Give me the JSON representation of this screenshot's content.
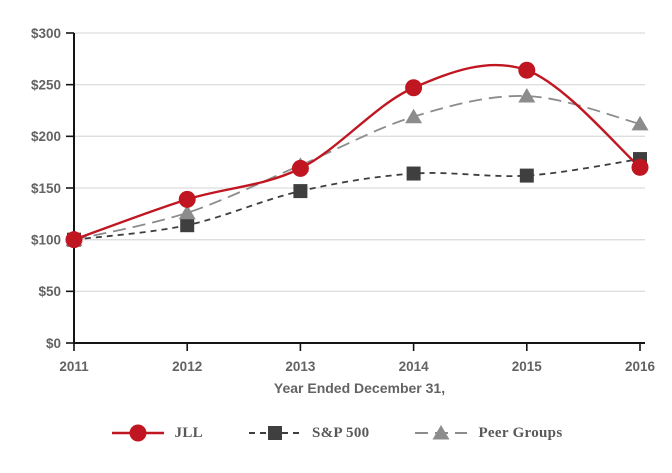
{
  "chart_data": {
    "type": "line",
    "title": "",
    "xlabel": "Year Ended December 31,",
    "ylabel": "",
    "x_labels": [
      "2011",
      "2012",
      "2013",
      "2014",
      "2015",
      "2016"
    ],
    "ylim": [
      0,
      300
    ],
    "ytick_values": [
      0,
      50,
      100,
      150,
      200,
      250,
      300
    ],
    "ytick_labels": [
      "$0",
      "$50",
      "$100",
      "$150",
      "$200",
      "$250",
      "$300"
    ],
    "grid": true,
    "legend_position": "bottom",
    "series": [
      {
        "name": "JLL",
        "marker": "circle",
        "line_style": "solid",
        "color": "#c01622",
        "values": [
          100,
          139,
          169,
          247,
          264,
          170
        ]
      },
      {
        "name": "S&P 500",
        "marker": "square",
        "line_style": "dashed-short",
        "color": "#3f3f3f",
        "values": [
          100,
          114,
          147,
          164,
          162,
          178
        ]
      },
      {
        "name": "Peer Groups",
        "marker": "triangle",
        "line_style": "dashed-long",
        "color": "#8c8c8c",
        "values": [
          100,
          126,
          172,
          219,
          239,
          212
        ]
      }
    ]
  },
  "colors": {
    "axis": "#141414",
    "grid": "#dedede",
    "tick_label": "#636363",
    "xlabel": "#636363",
    "legend_text": "#595959",
    "background": "#ffffff"
  }
}
